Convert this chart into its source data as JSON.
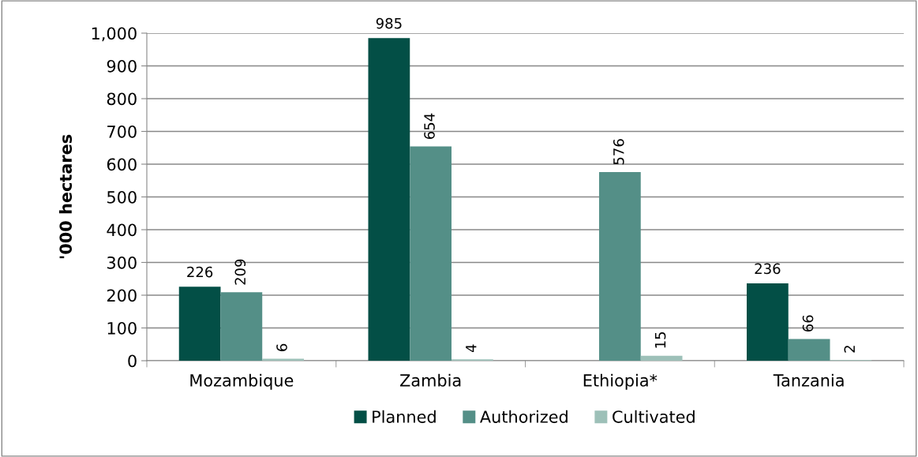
{
  "chart_data": {
    "type": "bar",
    "ylabel": "'000 hectares",
    "categories": [
      "Mozambique",
      "Zambia",
      "Ethiopia*",
      "Tanzania"
    ],
    "series": [
      {
        "name": "Planned",
        "color": "#034f46",
        "values": [
          226,
          985,
          null,
          236
        ]
      },
      {
        "name": "Authorized",
        "color": "#548f87",
        "values": [
          209,
          654,
          576,
          66
        ]
      },
      {
        "name": "Cultivated",
        "color": "#9dc0b8",
        "values": [
          6,
          4,
          15,
          2
        ]
      }
    ],
    "ylim": [
      0,
      1000
    ],
    "yticks": [
      0,
      100,
      200,
      300,
      400,
      500,
      600,
      700,
      800,
      900,
      {
        "value": 1000,
        "label": "1,000"
      }
    ],
    "grid": "y",
    "legend": "bottom",
    "data_labels": true
  }
}
